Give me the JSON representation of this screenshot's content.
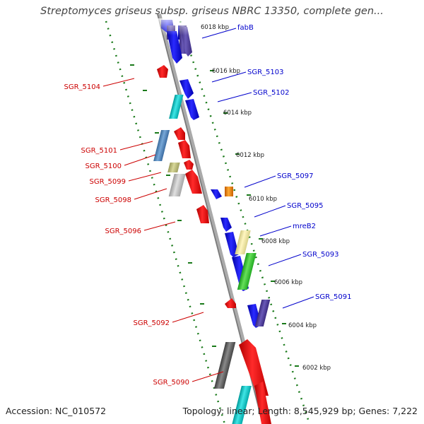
{
  "header": {
    "title": "Streptomyces griseus subsp. griseus NBRC 13350, complete gen..."
  },
  "footer": {
    "accession": "Accession: NC_010572",
    "summary": "Topology: linear; Length: 8,545,929 bp; Genes: 7,222"
  },
  "colors": {
    "forward_label": "#0000cc",
    "reverse_label": "#cc0000",
    "tick": "#1a7a1a",
    "backbone": "#999999"
  },
  "scale_labels": [
    "6018 kbp",
    "6016 kbp",
    "6014 kbp",
    "6012 kbp",
    "6010 kbp",
    "6008 kbp",
    "6006 kbp",
    "6004 kbp",
    "6002 kbp"
  ],
  "gene_labels": {
    "fabB": "fabB",
    "sgr5103": "SGR_5103",
    "sgr5102": "SGR_5102",
    "sgr5104": "SGR_5104",
    "sgr5101": "SGR_5101",
    "sgr5100": "SGR_5100",
    "sgr5099": "SGR_5099",
    "sgr5098": "SGR_5098",
    "sgr5097": "SGR_5097",
    "sgr5095": "SGR_5095",
    "mreB2": "mreB2",
    "sgr5096": "SGR_5096",
    "sgr5093": "SGR_5093",
    "sgr5091": "SGR_5091",
    "sgr5092": "SGR_5092",
    "sgr5090": "SGR_5090"
  }
}
